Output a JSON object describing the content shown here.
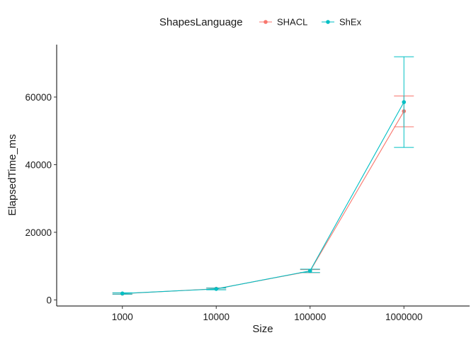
{
  "chart_data": {
    "type": "line",
    "xlabel": "Size",
    "ylabel": "ElapsedTime_ms",
    "categories": [
      "1000",
      "10000",
      "100000",
      "1000000"
    ],
    "y_ticks": [
      0,
      20000,
      40000,
      60000
    ],
    "y_tick_labels": [
      "0",
      "20000",
      "40000",
      "60000"
    ],
    "ylim": [
      -1800,
      75500
    ],
    "grid": false,
    "legend": {
      "title": "ShapesLanguage",
      "position": "top"
    },
    "series": [
      {
        "name": "SHACL",
        "color": "#f8766d",
        "values": [
          1850,
          3300,
          8500,
          55800
        ],
        "error_low": [
          1650,
          3050,
          8050,
          51200
        ],
        "error_high": [
          2050,
          3550,
          8950,
          60300
        ]
      },
      {
        "name": "ShEx",
        "color": "#00bfc4",
        "values": [
          1900,
          3250,
          8600,
          58500
        ],
        "error_low": [
          1700,
          3000,
          8100,
          45100
        ],
        "error_high": [
          2100,
          3500,
          9100,
          71900
        ]
      }
    ]
  }
}
